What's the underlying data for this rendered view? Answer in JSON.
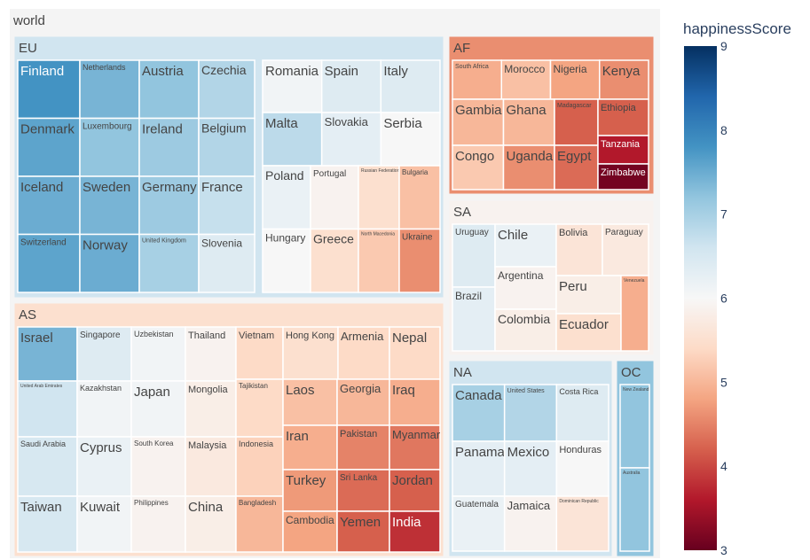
{
  "chart_data": {
    "type": "treemap",
    "root": "world",
    "color_metric": "happinessScore",
    "colorbar": {
      "title": "happinessScore",
      "range": [
        3,
        9
      ],
      "ticks": [
        3,
        4,
        5,
        6,
        7,
        8,
        9
      ],
      "colorscale": [
        "#67001f",
        "#b2182b",
        "#d6604d",
        "#f4a582",
        "#fddbc7",
        "#f7f7f7",
        "#d1e5f0",
        "#92c5de",
        "#4393c3",
        "#2166ac",
        "#053061"
      ]
    },
    "regions": [
      {
        "name": "EU",
        "value": 6.6,
        "countries": [
          {
            "name": "Finland",
            "value": 7.8
          },
          {
            "name": "Netherlands",
            "value": 7.4
          },
          {
            "name": "Austria",
            "value": 7.2
          },
          {
            "name": "Czechia",
            "value": 6.9
          },
          {
            "name": "Romania",
            "value": 6.1
          },
          {
            "name": "Spain",
            "value": 6.4
          },
          {
            "name": "Italy",
            "value": 6.4
          },
          {
            "name": "Denmark",
            "value": 7.6
          },
          {
            "name": "Luxembourg",
            "value": 7.2
          },
          {
            "name": "Ireland",
            "value": 7.1
          },
          {
            "name": "Belgium",
            "value": 6.9
          },
          {
            "name": "Malta",
            "value": 6.8
          },
          {
            "name": "Slovakia",
            "value": 6.3
          },
          {
            "name": "Serbia",
            "value": 6.0
          },
          {
            "name": "Iceland",
            "value": 7.5
          },
          {
            "name": "Sweden",
            "value": 7.4
          },
          {
            "name": "Germany",
            "value": 7.1
          },
          {
            "name": "France",
            "value": 6.7
          },
          {
            "name": "Poland",
            "value": 6.2
          },
          {
            "name": "Portugal",
            "value": 5.9
          },
          {
            "name": "Russian Federation",
            "value": 5.5
          },
          {
            "name": "Bulgaria",
            "value": 5.1
          },
          {
            "name": "Switzerland",
            "value": 7.6
          },
          {
            "name": "Norway",
            "value": 7.5
          },
          {
            "name": "United Kingdom",
            "value": 7.0
          },
          {
            "name": "Slovenia",
            "value": 6.4
          },
          {
            "name": "Hungary",
            "value": 6.0
          },
          {
            "name": "Greece",
            "value": 5.5
          },
          {
            "name": "North Macedonia",
            "value": 5.2
          },
          {
            "name": "Ukraine",
            "value": 4.6
          }
        ]
      },
      {
        "name": "AF",
        "value": 4.6,
        "countries": [
          {
            "name": "South Africa",
            "value": 4.9
          },
          {
            "name": "Morocco",
            "value": 5.1
          },
          {
            "name": "Nigeria",
            "value": 4.8
          },
          {
            "name": "Kenya",
            "value": 4.6
          },
          {
            "name": "Gambia",
            "value": 5.0
          },
          {
            "name": "Ghana",
            "value": 5.0
          },
          {
            "name": "Madagascar",
            "value": 4.2
          },
          {
            "name": "Ethiopia",
            "value": 4.2
          },
          {
            "name": "Tanzania",
            "value": 3.6
          },
          {
            "name": "Congo",
            "value": 5.2
          },
          {
            "name": "Uganda",
            "value": 4.6
          },
          {
            "name": "Egypt",
            "value": 4.3
          },
          {
            "name": "Zimbabwe",
            "value": 3.1
          }
        ]
      },
      {
        "name": "SA",
        "value": 5.9,
        "countries": [
          {
            "name": "Uruguay",
            "value": 6.4
          },
          {
            "name": "Chile",
            "value": 6.2
          },
          {
            "name": "Bolivia",
            "value": 5.6
          },
          {
            "name": "Paraguay",
            "value": 5.7
          },
          {
            "name": "Brazil",
            "value": 6.3
          },
          {
            "name": "Argentina",
            "value": 5.9
          },
          {
            "name": "Peru",
            "value": 5.8
          },
          {
            "name": "Venezuela",
            "value": 4.9
          },
          {
            "name": "Colombia",
            "value": 5.8
          },
          {
            "name": "Ecuador",
            "value": 5.5
          }
        ]
      },
      {
        "name": "AS",
        "value": 5.5,
        "countries": [
          {
            "name": "Israel",
            "value": 7.4
          },
          {
            "name": "Singapore",
            "value": 6.4
          },
          {
            "name": "Uzbekistan",
            "value": 6.1
          },
          {
            "name": "Thailand",
            "value": 5.9
          },
          {
            "name": "Vietnam",
            "value": 5.4
          },
          {
            "name": "Hong Kong",
            "value": 5.5
          },
          {
            "name": "Armenia",
            "value": 5.4
          },
          {
            "name": "Nepal",
            "value": 5.4
          },
          {
            "name": "United Arab Emirates",
            "value": 6.6
          },
          {
            "name": "Kazakhstan",
            "value": 6.1
          },
          {
            "name": "Japan",
            "value": 6.1
          },
          {
            "name": "Mongolia",
            "value": 5.8
          },
          {
            "name": "Tajikistan",
            "value": 5.4
          },
          {
            "name": "Laos",
            "value": 5.1
          },
          {
            "name": "Georgia",
            "value": 5.0
          },
          {
            "name": "Iraq",
            "value": 4.9
          },
          {
            "name": "Saudi Arabia",
            "value": 6.5
          },
          {
            "name": "Cyprus",
            "value": 6.2
          },
          {
            "name": "South Korea",
            "value": 5.9
          },
          {
            "name": "Malaysia",
            "value": 5.7
          },
          {
            "name": "Indonesia",
            "value": 5.3
          },
          {
            "name": "Iran",
            "value": 4.9
          },
          {
            "name": "Pakistan",
            "value": 4.5
          },
          {
            "name": "Myanmar",
            "value": 4.4
          },
          {
            "name": "Taiwan",
            "value": 6.5
          },
          {
            "name": "Kuwait",
            "value": 6.1
          },
          {
            "name": "Philippines",
            "value": 5.9
          },
          {
            "name": "China",
            "value": 5.8
          },
          {
            "name": "Bangladesh",
            "value": 5.0
          },
          {
            "name": "Turkey",
            "value": 4.7
          },
          {
            "name": "Sri Lanka",
            "value": 4.3
          },
          {
            "name": "Jordan",
            "value": 4.2
          },
          {
            "name": "Cambodia",
            "value": 4.8
          },
          {
            "name": "Yemen",
            "value": 4.2
          },
          {
            "name": "India",
            "value": 3.8
          }
        ]
      },
      {
        "name": "NA",
        "value": 6.6,
        "countries": [
          {
            "name": "Canada",
            "value": 7.0
          },
          {
            "name": "United States",
            "value": 6.9
          },
          {
            "name": "Costa Rica",
            "value": 6.4
          },
          {
            "name": "Panama",
            "value": 6.3
          },
          {
            "name": "Mexico",
            "value": 6.3
          },
          {
            "name": "Honduras",
            "value": 6.0
          },
          {
            "name": "Guatemala",
            "value": 6.2
          },
          {
            "name": "Jamaica",
            "value": 5.9
          },
          {
            "name": "Dominican Republic",
            "value": 5.6
          }
        ]
      },
      {
        "name": "OC",
        "value": 7.2,
        "countries": [
          {
            "name": "New Zealand",
            "value": 7.2
          },
          {
            "name": "Australia",
            "value": 7.2
          }
        ]
      }
    ]
  }
}
